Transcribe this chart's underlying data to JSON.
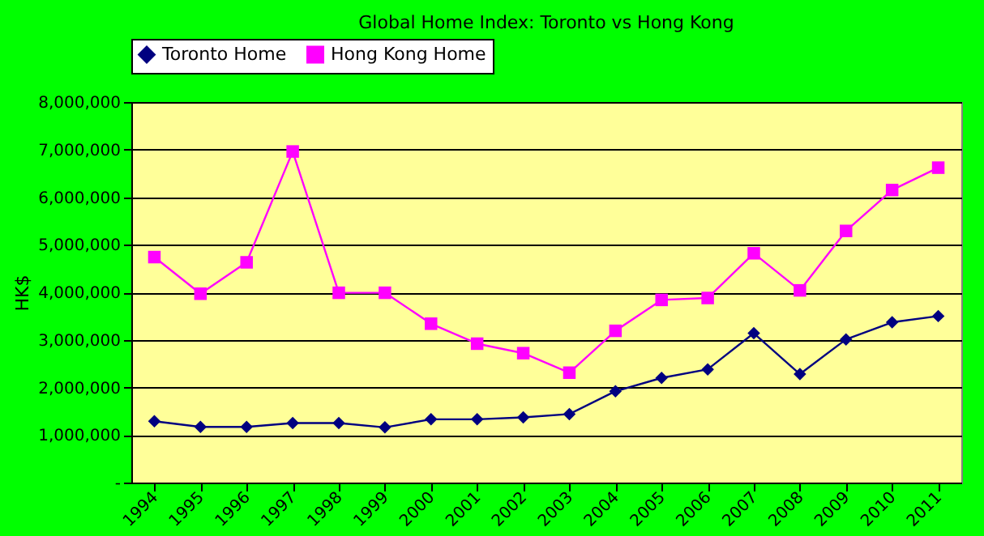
{
  "chart_data": {
    "type": "line",
    "title": "Global Home Index: Toronto vs Hong Kong",
    "ylabel": "HK$",
    "categories": [
      "1994",
      "1995",
      "1996",
      "1997",
      "1998",
      "1999",
      "2000",
      "2001",
      "2002",
      "2003",
      "2004",
      "2005",
      "2006",
      "2007",
      "2008",
      "2009",
      "2010",
      "2011"
    ],
    "series": [
      {
        "name": "Toronto Home",
        "color": "#000080",
        "marker": "diamond",
        "values": [
          1290000,
          1170000,
          1170000,
          1250000,
          1250000,
          1160000,
          1330000,
          1330000,
          1370000,
          1440000,
          1920000,
          2200000,
          2380000,
          3140000,
          2280000,
          3010000,
          3370000,
          3500000
        ]
      },
      {
        "name": "Hong Kong Home",
        "color": "#ff00ff",
        "marker": "square",
        "values": [
          4740000,
          3970000,
          4630000,
          6960000,
          3990000,
          3990000,
          3340000,
          2920000,
          2720000,
          2310000,
          3190000,
          3840000,
          3880000,
          4820000,
          4040000,
          5290000,
          6150000,
          6620000
        ]
      }
    ],
    "ylim": [
      0,
      8000000
    ],
    "yticks": [
      {
        "value": 0,
        "label": "-"
      },
      {
        "value": 1000000,
        "label": "1,000,000"
      },
      {
        "value": 2000000,
        "label": "2,000,000"
      },
      {
        "value": 3000000,
        "label": "3,000,000"
      },
      {
        "value": 4000000,
        "label": "4,000,000"
      },
      {
        "value": 5000000,
        "label": "5,000,000"
      },
      {
        "value": 6000000,
        "label": "6,000,000"
      },
      {
        "value": 7000000,
        "label": "7,000,000"
      },
      {
        "value": 8000000,
        "label": "8,000,000"
      }
    ],
    "grid": "y",
    "legend": "top",
    "line_style": "solid"
  }
}
